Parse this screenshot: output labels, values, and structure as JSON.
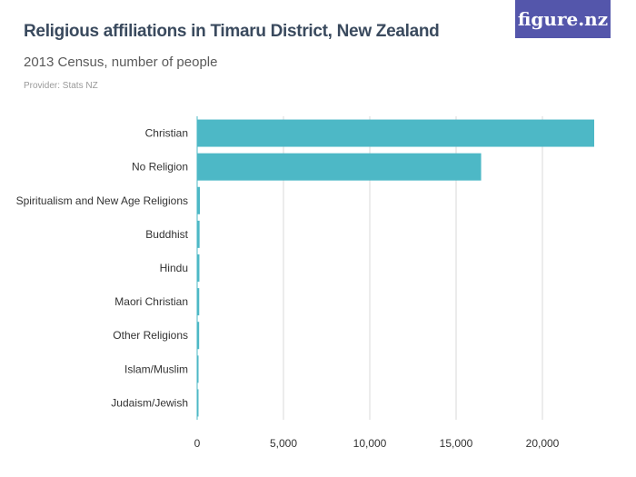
{
  "header": {
    "title": "Religious affiliations in Timaru District, New Zealand",
    "subtitle": "2013 Census, number of people",
    "provider": "Provider: Stats NZ",
    "logo": "figure.nz"
  },
  "colors": {
    "bar": "#4db8c6",
    "grid": "#d9d9d9",
    "logo_bg": "#5456ab"
  },
  "chart_data": {
    "type": "bar",
    "orientation": "horizontal",
    "categories": [
      "Christian",
      "No Religion",
      "Spiritualism and New Age Religions",
      "Buddhist",
      "Hindu",
      "Maori Christian",
      "Other Religions",
      "Islam/Muslim",
      "Judaism/Jewish"
    ],
    "values": [
      23000,
      16450,
      160,
      140,
      130,
      120,
      115,
      80,
      20
    ],
    "xlim": [
      0,
      24000
    ],
    "xticks": [
      0,
      5000,
      10000,
      15000,
      20000
    ],
    "xtick_labels": [
      "0",
      "5,000",
      "10,000",
      "15,000",
      "20,000"
    ],
    "grid": true
  }
}
